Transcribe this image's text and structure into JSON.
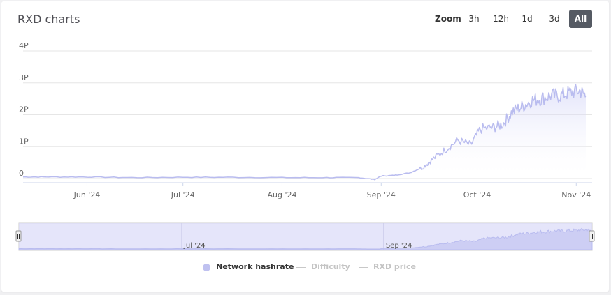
{
  "title": "RXD charts",
  "zoom": {
    "label": "Zoom",
    "buttons": [
      "3h",
      "12h",
      "1d",
      "3d",
      "All"
    ],
    "active": "All"
  },
  "legend": [
    {
      "name": "Network hashrate",
      "enabled": true
    },
    {
      "name": "Difficulty",
      "enabled": false
    },
    {
      "name": "RXD price",
      "enabled": false
    }
  ],
  "colors": {
    "series": "#b9bcef",
    "navigator_fill": "#dcdcf8",
    "navigator_handle": "#f2f2f2",
    "active_button": "#555a63"
  },
  "chart_data": {
    "type": "area",
    "series": [
      {
        "name": "Network hashrate",
        "x": [
          "2024-05-12",
          "2024-05-20",
          "2024-06-01",
          "2024-06-15",
          "2024-07-01",
          "2024-07-15",
          "2024-08-01",
          "2024-08-15",
          "2024-08-25",
          "2024-08-30",
          "2024-09-01",
          "2024-09-05",
          "2024-09-10",
          "2024-09-14",
          "2024-09-17",
          "2024-09-21",
          "2024-09-25",
          "2024-09-29",
          "2024-10-02",
          "2024-10-06",
          "2024-10-09",
          "2024-10-12",
          "2024-10-15",
          "2024-10-18",
          "2024-10-21",
          "2024-10-24",
          "2024-10-27",
          "2024-10-30",
          "2024-11-02",
          "2024-11-04"
        ],
        "y": [
          0.05,
          0.05,
          0.05,
          0.03,
          0.04,
          0.04,
          0.03,
          0.03,
          0.03,
          -0.03,
          0.08,
          0.1,
          0.18,
          0.35,
          0.6,
          0.9,
          1.2,
          1.05,
          1.55,
          1.6,
          1.7,
          2.1,
          2.25,
          2.45,
          2.5,
          2.6,
          2.6,
          2.7,
          2.75,
          2.6
        ]
      }
    ],
    "x_ticks": [
      "Jun '24",
      "Jul '24",
      "Aug '24",
      "Sep '24",
      "Oct '24",
      "Nov '24"
    ],
    "x_tick_dates": [
      "2024-06-01",
      "2024-07-01",
      "2024-08-01",
      "2024-09-01",
      "2024-10-01",
      "2024-11-01"
    ],
    "y_ticks": [
      "0",
      "1P",
      "2P",
      "3P",
      "4P"
    ],
    "y_tick_values": [
      0,
      1,
      2,
      3,
      4
    ],
    "ylim": [
      0,
      4
    ],
    "xlim": [
      "2024-05-12",
      "2024-11-04"
    ],
    "grid": true,
    "legend_position": "bottom-center",
    "navigator": {
      "labels": [
        "Jul '24",
        "Sep '24"
      ],
      "label_dates": [
        "2024-07-01",
        "2024-09-01"
      ]
    }
  }
}
